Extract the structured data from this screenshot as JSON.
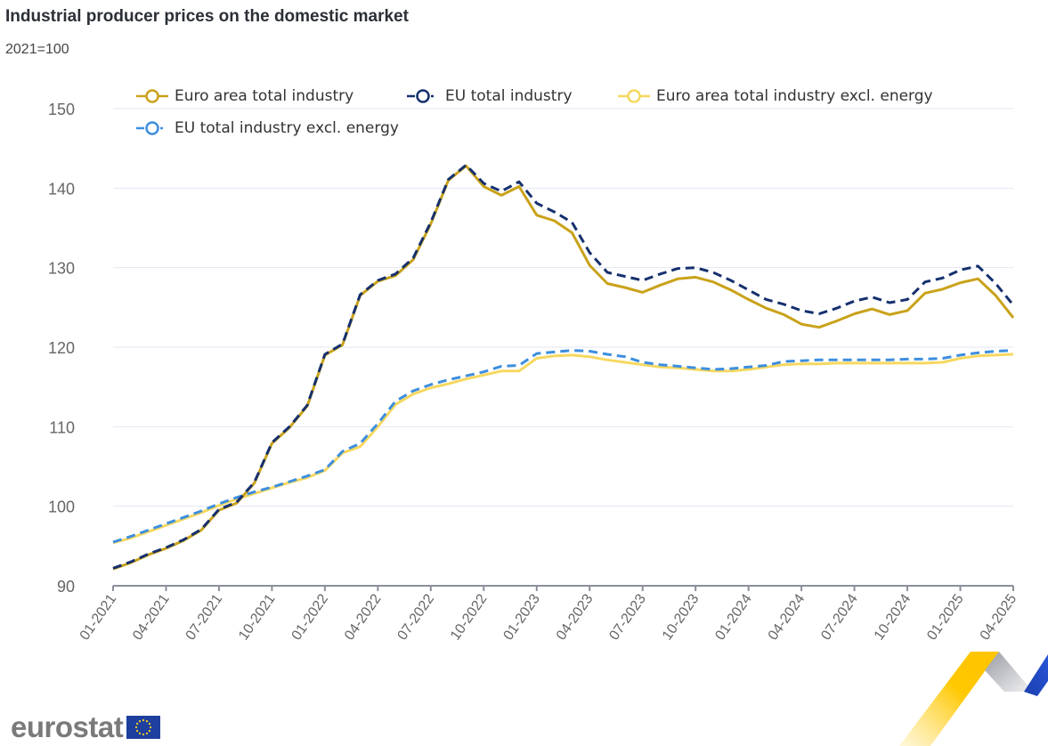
{
  "header": {
    "title": "Industrial producer prices on the domestic market",
    "subtitle": "2021=100"
  },
  "branding": {
    "logo_text": "eurostat",
    "flag_color": "#1f3f9f"
  },
  "chart_data": {
    "type": "line",
    "title": "Industrial producer prices on the domestic market",
    "subtitle": "2021=100",
    "xlabel": "",
    "ylabel": "",
    "ylim": [
      90,
      150
    ],
    "yticks": [
      90,
      100,
      110,
      120,
      130,
      140,
      150
    ],
    "grid": true,
    "legend_position": "top",
    "x": [
      "01-2021",
      "02-2021",
      "03-2021",
      "04-2021",
      "05-2021",
      "06-2021",
      "07-2021",
      "08-2021",
      "09-2021",
      "10-2021",
      "11-2021",
      "12-2021",
      "01-2022",
      "02-2022",
      "03-2022",
      "04-2022",
      "05-2022",
      "06-2022",
      "07-2022",
      "08-2022",
      "09-2022",
      "10-2022",
      "11-2022",
      "12-2022",
      "01-2023",
      "02-2023",
      "03-2023",
      "04-2023",
      "05-2023",
      "06-2023",
      "07-2023",
      "08-2023",
      "09-2023",
      "10-2023",
      "11-2023",
      "12-2023",
      "01-2024",
      "02-2024",
      "03-2024",
      "04-2024",
      "05-2024",
      "06-2024",
      "07-2024",
      "08-2024",
      "09-2024",
      "10-2024",
      "11-2024",
      "12-2024",
      "01-2025",
      "02-2025",
      "03-2025",
      "04-2025"
    ],
    "xtick_labels": [
      "01-2021",
      "04-2021",
      "07-2021",
      "10-2021",
      "01-2022",
      "04-2022",
      "07-2022",
      "10-2022",
      "01-2023",
      "04-2023",
      "07-2023",
      "10-2023",
      "01-2024",
      "04-2024",
      "07-2024",
      "10-2024",
      "01-2025",
      "04-2025"
    ],
    "series": [
      {
        "name": "Euro area total industry",
        "color": "#c9a21a",
        "dash": "solid",
        "values": [
          92.1,
          92.9,
          93.9,
          94.7,
          95.7,
          97.0,
          99.5,
          100.4,
          102.9,
          107.9,
          109.9,
          112.6,
          119.0,
          120.3,
          126.5,
          128.3,
          129.0,
          131.0,
          135.5,
          141.0,
          142.8,
          140.2,
          139.1,
          140.2,
          136.6,
          135.9,
          134.4,
          130.3,
          128.0,
          127.5,
          126.9,
          127.8,
          128.6,
          128.8,
          128.2,
          127.2,
          126.0,
          124.9,
          124.1,
          122.9,
          122.5,
          123.3,
          124.2,
          124.8,
          124.1,
          124.6,
          126.8,
          127.3,
          128.1,
          128.6,
          126.5,
          123.7
        ]
      },
      {
        "name": "EU total industry",
        "color": "#15306e",
        "dash": "dashed",
        "values": [
          92.2,
          93.0,
          94.0,
          94.8,
          95.8,
          97.1,
          99.6,
          100.5,
          103.0,
          108.0,
          110.0,
          112.7,
          119.1,
          120.4,
          126.6,
          128.4,
          129.2,
          131.2,
          135.7,
          141.1,
          142.9,
          140.6,
          139.6,
          140.8,
          138.1,
          137.0,
          135.7,
          131.9,
          129.4,
          128.9,
          128.4,
          129.2,
          129.9,
          130.0,
          129.4,
          128.4,
          127.2,
          126.0,
          125.4,
          124.6,
          124.2,
          124.9,
          125.8,
          126.3,
          125.6,
          126.0,
          128.2,
          128.7,
          129.7,
          130.2,
          128.0,
          125.3
        ]
      },
      {
        "name": "Euro area total industry excl. energy",
        "color": "#f6d860",
        "dash": "solid",
        "values": [
          95.4,
          96.0,
          96.8,
          97.6,
          98.4,
          99.2,
          100.1,
          100.9,
          101.6,
          102.3,
          103.0,
          103.6,
          104.5,
          106.7,
          107.5,
          110.0,
          112.8,
          114.1,
          114.9,
          115.4,
          116.0,
          116.5,
          117.0,
          117.0,
          118.6,
          118.9,
          119.0,
          118.8,
          118.4,
          118.1,
          117.8,
          117.5,
          117.4,
          117.2,
          117.0,
          117.0,
          117.2,
          117.5,
          117.8,
          117.9,
          117.9,
          118.0,
          118.0,
          118.0,
          118.0,
          118.0,
          118.0,
          118.1,
          118.6,
          118.9,
          119.0,
          119.1
        ]
      },
      {
        "name": "EU total industry excl. energy",
        "color": "#3d8ede",
        "dash": "dashed",
        "values": [
          95.5,
          96.2,
          97.0,
          97.8,
          98.6,
          99.4,
          100.3,
          101.1,
          101.8,
          102.4,
          103.1,
          103.8,
          104.6,
          106.9,
          107.9,
          110.4,
          113.2,
          114.5,
          115.3,
          115.9,
          116.4,
          116.9,
          117.6,
          117.7,
          119.2,
          119.4,
          119.6,
          119.5,
          119.1,
          118.8,
          118.1,
          117.8,
          117.6,
          117.4,
          117.2,
          117.3,
          117.5,
          117.7,
          118.2,
          118.3,
          118.4,
          118.4,
          118.4,
          118.4,
          118.4,
          118.5,
          118.5,
          118.6,
          119.0,
          119.3,
          119.5,
          119.6
        ]
      }
    ]
  }
}
